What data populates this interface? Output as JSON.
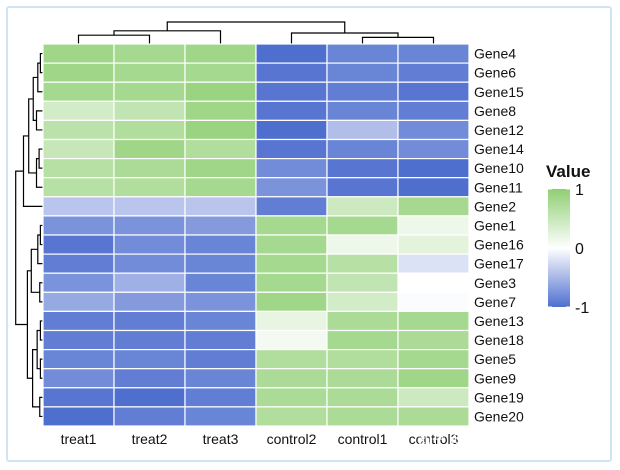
{
  "chart_data": {
    "type": "heatmap",
    "columns": [
      "treat1",
      "treat2",
      "treat3",
      "control2",
      "control1",
      "control3"
    ],
    "rows": [
      "Gene4",
      "Gene6",
      "Gene15",
      "Gene8",
      "Gene12",
      "Gene14",
      "Gene10",
      "Gene11",
      "Gene2",
      "Gene1",
      "Gene16",
      "Gene17",
      "Gene3",
      "Gene7",
      "Gene13",
      "Gene18",
      "Gene5",
      "Gene9",
      "Gene19",
      "Gene20"
    ],
    "values": [
      [
        0.85,
        0.8,
        0.85,
        -1.0,
        -0.85,
        -0.85
      ],
      [
        0.85,
        0.8,
        0.8,
        -0.95,
        -0.85,
        -0.9
      ],
      [
        0.8,
        0.8,
        0.9,
        -0.95,
        -0.9,
        -0.95
      ],
      [
        0.4,
        0.55,
        0.85,
        -0.95,
        -0.85,
        -0.9
      ],
      [
        0.6,
        0.7,
        0.9,
        -1.0,
        -0.45,
        -0.8
      ],
      [
        0.5,
        0.85,
        0.7,
        -0.95,
        -0.85,
        -0.8
      ],
      [
        0.65,
        0.75,
        0.85,
        -0.8,
        -0.95,
        -1.0
      ],
      [
        0.65,
        0.7,
        0.8,
        -0.75,
        -0.95,
        -1.0
      ],
      [
        -0.4,
        -0.4,
        -0.4,
        -0.9,
        0.45,
        0.8
      ],
      [
        -0.75,
        -0.75,
        -0.7,
        0.8,
        0.8,
        0.15
      ],
      [
        -0.95,
        -0.8,
        -0.85,
        0.8,
        0.15,
        0.25
      ],
      [
        -0.9,
        -0.8,
        -0.85,
        0.8,
        0.65,
        -0.2
      ],
      [
        -0.75,
        -0.55,
        -0.85,
        0.8,
        0.55,
        0.0
      ],
      [
        -0.6,
        -0.7,
        -0.75,
        0.85,
        0.4,
        -0.02
      ],
      [
        -0.9,
        -0.9,
        -0.85,
        0.2,
        0.75,
        0.8
      ],
      [
        -0.9,
        -0.9,
        -0.9,
        0.1,
        0.8,
        0.75
      ],
      [
        -0.85,
        -0.85,
        -0.9,
        0.7,
        0.7,
        0.8
      ],
      [
        -0.8,
        -0.9,
        -0.85,
        0.75,
        0.75,
        0.85
      ],
      [
        -0.95,
        -1.0,
        -0.9,
        0.75,
        0.75,
        0.45
      ],
      [
        -1.0,
        -0.9,
        -0.85,
        0.7,
        0.75,
        0.75
      ]
    ],
    "value_range": [
      -1,
      1
    ],
    "colors": {
      "low": "#4f6fcf",
      "mid": "#ffffff",
      "high": "#8fcf73"
    },
    "legend": {
      "title": "Value",
      "ticks": [
        {
          "value": 1,
          "label": "1"
        },
        {
          "value": 0,
          "label": "0"
        },
        {
          "value": -1,
          "label": "-1"
        }
      ],
      "position": "right"
    },
    "dendrograms": [
      "top",
      "left"
    ]
  },
  "watermark": "知乎 @TigerZ 生信宝库"
}
